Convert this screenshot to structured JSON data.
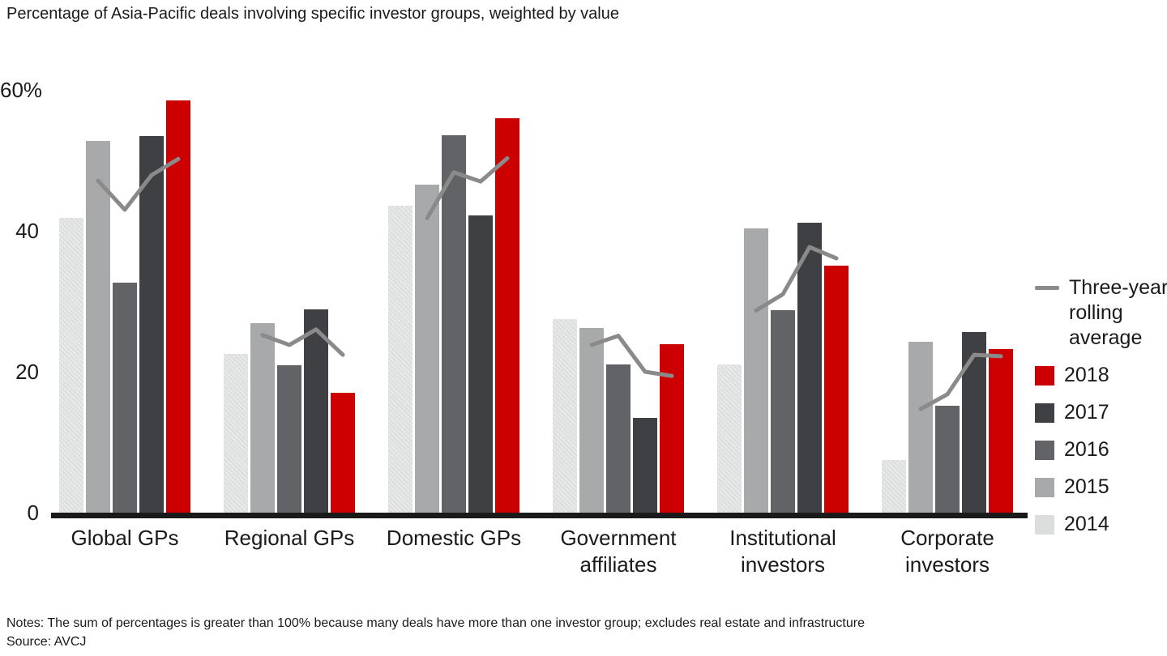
{
  "title": "Percentage of Asia-Pacific deals involving specific investor groups, weighted by value",
  "notes": "Notes: The sum of percentages is greater than 100% because many deals have more than one investor group; excludes real estate and infrastructure",
  "source": "Source: AVCJ",
  "colors": {
    "year_2014": "#dcdddd",
    "year_2015": "#a7a9ab",
    "year_2016": "#626366",
    "year_2017": "#3f4043",
    "year_2018": "#cc0000",
    "rolling_line": "#8a8a8a",
    "axis": "#1a1a1a"
  },
  "chart_data": {
    "type": "bar",
    "title": "Percentage of Asia-Pacific deals involving specific investor groups, weighted by value",
    "categories": [
      "Global GPs",
      "Regional GPs",
      "Domestic GPs",
      "Government affiliates",
      "Institutional investors",
      "Corporate investors"
    ],
    "categories_display": [
      [
        "Global GPs"
      ],
      [
        "Regional GPs"
      ],
      [
        "Domestic GPs"
      ],
      [
        "Government",
        "affiliates"
      ],
      [
        "Institutional",
        "investors"
      ],
      [
        "Corporate",
        "investors"
      ]
    ],
    "series": [
      {
        "name": "2014",
        "color": "#dcdddd",
        "values": [
          41.8,
          22.5,
          43.6,
          27.5,
          21.0,
          7.5
        ]
      },
      {
        "name": "2015",
        "color": "#a7a9ab",
        "values": [
          52.8,
          26.9,
          46.6,
          26.2,
          40.3,
          24.3
        ]
      },
      {
        "name": "2016",
        "color": "#626366",
        "values": [
          32.6,
          20.9,
          53.6,
          21.0,
          28.7,
          15.2
        ]
      },
      {
        "name": "2017",
        "color": "#3f4043",
        "values": [
          53.4,
          28.9,
          42.2,
          13.4,
          41.1,
          25.6
        ]
      },
      {
        "name": "2018",
        "color": "#cc0000",
        "values": [
          58.5,
          17.0,
          56.0,
          23.9,
          35.0,
          23.2
        ]
      }
    ],
    "line_series": {
      "name": "Three-year rolling average",
      "color": "#8a8a8a",
      "years": [
        "2015",
        "2016",
        "2017",
        "2018"
      ],
      "values_by_category": [
        [
          47.1,
          43.0,
          47.9,
          50.2
        ],
        [
          25.2,
          23.8,
          26.0,
          22.4
        ],
        [
          41.8,
          48.3,
          47.0,
          50.3
        ],
        [
          23.8,
          25.1,
          20.0,
          19.4
        ],
        [
          28.7,
          31.0,
          37.7,
          36.1
        ],
        [
          14.7,
          16.8,
          22.4,
          22.2
        ]
      ]
    },
    "ylim": [
      0,
      60
    ],
    "yticks": [
      {
        "value": 60,
        "label": "60%"
      },
      {
        "value": 40,
        "label": "40"
      },
      {
        "value": 20,
        "label": "20"
      },
      {
        "value": 0,
        "label": "0"
      }
    ],
    "grid": false,
    "legend_position": "right",
    "legend": {
      "items": [
        {
          "label": "Three-year rolling average",
          "type": "line",
          "color": "#8a8a8a"
        },
        {
          "label": "2018",
          "type": "swatch",
          "color": "#cc0000"
        },
        {
          "label": "2017",
          "type": "swatch",
          "color": "#3f4043"
        },
        {
          "label": "2016",
          "type": "swatch",
          "color": "#626366"
        },
        {
          "label": "2015",
          "type": "swatch",
          "color": "#a7a9ab"
        },
        {
          "label": "2014",
          "type": "swatch",
          "color": "#dcdddd"
        }
      ]
    }
  }
}
